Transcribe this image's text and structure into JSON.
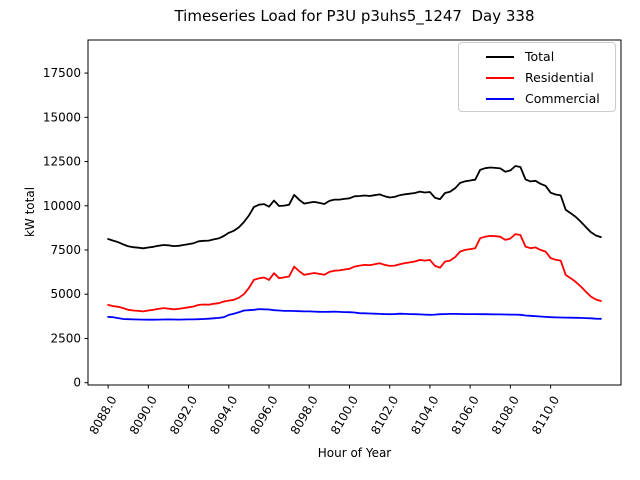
{
  "figure": {
    "background": "#ffffff"
  },
  "chart_data": {
    "type": "line",
    "title": "Timeseries Load for P3U p3uhs5_1247  Day 338",
    "xlabel": "Hour of Year",
    "ylabel": "kW total",
    "grid": false,
    "legend_position": "upper right",
    "xlim": [
      8087.0,
      8113.5
    ],
    "ylim": [
      -130,
      19370
    ],
    "xticks": [
      8088,
      8090,
      8092,
      8094,
      8096,
      8098,
      8100,
      8102,
      8104,
      8106,
      8108,
      8110
    ],
    "xtick_labels": [
      "8088.0",
      "8090.0",
      "8092.0",
      "8094.0",
      "8096.0",
      "8098.0",
      "8100.0",
      "8102.0",
      "8104.0",
      "8106.0",
      "8108.0",
      "8110.0"
    ],
    "yticks": [
      0,
      2500,
      5000,
      7500,
      10000,
      12500,
      15000,
      17500
    ],
    "ytick_labels": [
      "0",
      "2500",
      "5000",
      "7500",
      "10000",
      "12500",
      "15000",
      "17500"
    ],
    "x": [
      8088.0,
      8088.25,
      8088.5,
      8088.75,
      8089.0,
      8089.25,
      8089.5,
      8089.75,
      8090.0,
      8090.25,
      8090.5,
      8090.75,
      8091.0,
      8091.25,
      8091.5,
      8091.75,
      8092.0,
      8092.25,
      8092.5,
      8092.75,
      8093.0,
      8093.25,
      8093.5,
      8093.75,
      8094.0,
      8094.25,
      8094.5,
      8094.75,
      8095.0,
      8095.25,
      8095.5,
      8095.75,
      8096.0,
      8096.25,
      8096.5,
      8096.75,
      8097.0,
      8097.25,
      8097.5,
      8097.75,
      8098.0,
      8098.25,
      8098.5,
      8098.75,
      8099.0,
      8099.25,
      8099.5,
      8099.75,
      8100.0,
      8100.25,
      8100.5,
      8100.75,
      8101.0,
      8101.25,
      8101.5,
      8101.75,
      8102.0,
      8102.25,
      8102.5,
      8102.75,
      8103.0,
      8103.25,
      8103.5,
      8103.75,
      8104.0,
      8104.25,
      8104.5,
      8104.75,
      8105.0,
      8105.25,
      8105.5,
      8105.75,
      8106.0,
      8106.25,
      8106.5,
      8106.75,
      8107.0,
      8107.25,
      8107.5,
      8107.75,
      8108.0,
      8108.25,
      8108.5,
      8108.75,
      8109.0,
      8109.25,
      8109.5,
      8109.75,
      8110.0,
      8110.25,
      8110.5,
      8110.75,
      8111.0,
      8111.25,
      8111.5,
      8111.75,
      8112.0,
      8112.25,
      8112.5
    ],
    "series": [
      {
        "name": "Total",
        "color": "#000000",
        "values": [
          8120,
          8030,
          7940,
          7815,
          7710,
          7660,
          7630,
          7595,
          7640,
          7680,
          7735,
          7785,
          7765,
          7720,
          7735,
          7785,
          7835,
          7885,
          7990,
          8020,
          8030,
          8100,
          8155,
          8290,
          8475,
          8585,
          8780,
          9080,
          9450,
          9930,
          10060,
          10095,
          9950,
          10290,
          9985,
          10010,
          10060,
          10615,
          10340,
          10125,
          10180,
          10220,
          10160,
          10100,
          10275,
          10350,
          10350,
          10390,
          10425,
          10535,
          10550,
          10580,
          10550,
          10600,
          10645,
          10540,
          10470,
          10500,
          10600,
          10650,
          10680,
          10720,
          10800,
          10750,
          10780,
          10450,
          10370,
          10725,
          10790,
          10990,
          11295,
          11385,
          11430,
          11475,
          12035,
          12125,
          12165,
          12140,
          12115,
          11925,
          12000,
          12250,
          12190,
          11490,
          11380,
          11410,
          11245,
          11130,
          10740,
          10640,
          10585,
          9775,
          9580,
          9370,
          9100,
          8800,
          8510,
          8320,
          8230
        ]
      },
      {
        "name": "Residential",
        "color": "#ff0000",
        "values": [
          4400,
          4330,
          4290,
          4215,
          4120,
          4080,
          4060,
          4030,
          4080,
          4120,
          4170,
          4215,
          4190,
          4150,
          4170,
          4215,
          4260,
          4305,
          4400,
          4420,
          4410,
          4460,
          4495,
          4590,
          4640,
          4685,
          4800,
          5000,
          5350,
          5810,
          5900,
          5945,
          5810,
          6190,
          5905,
          5950,
          6000,
          6565,
          6300,
          6095,
          6150,
          6200,
          6150,
          6100,
          6265,
          6330,
          6350,
          6400,
          6440,
          6565,
          6620,
          6660,
          6640,
          6700,
          6755,
          6660,
          6600,
          6620,
          6700,
          6760,
          6800,
          6850,
          6940,
          6900,
          6940,
          6600,
          6500,
          6845,
          6900,
          7100,
          7410,
          7505,
          7550,
          7600,
          8165,
          8255,
          8300,
          8280,
          8255,
          8070,
          8150,
          8400,
          8350,
          7690,
          7600,
          7650,
          7505,
          7410,
          7040,
          6950,
          6900,
          6095,
          5905,
          5700,
          5435,
          5150,
          4870,
          4700,
          4620
        ]
      },
      {
        "name": "Commercial",
        "color": "#0000ff",
        "values": [
          3720,
          3700,
          3650,
          3600,
          3590,
          3580,
          3570,
          3565,
          3560,
          3560,
          3565,
          3570,
          3575,
          3570,
          3565,
          3570,
          3575,
          3580,
          3590,
          3600,
          3620,
          3640,
          3660,
          3700,
          3835,
          3900,
          3980,
          4080,
          4100,
          4120,
          4160,
          4150,
          4140,
          4100,
          4080,
          4060,
          4060,
          4050,
          4040,
          4030,
          4030,
          4020,
          4010,
          4000,
          4010,
          4020,
          4000,
          3990,
          3985,
          3970,
          3930,
          3920,
          3910,
          3900,
          3890,
          3880,
          3870,
          3880,
          3900,
          3890,
          3880,
          3870,
          3860,
          3850,
          3840,
          3850,
          3870,
          3880,
          3890,
          3890,
          3885,
          3880,
          3880,
          3875,
          3870,
          3870,
          3865,
          3860,
          3860,
          3855,
          3850,
          3850,
          3840,
          3800,
          3780,
          3760,
          3740,
          3720,
          3700,
          3690,
          3685,
          3680,
          3675,
          3670,
          3665,
          3650,
          3640,
          3620,
          3610
        ]
      }
    ]
  }
}
